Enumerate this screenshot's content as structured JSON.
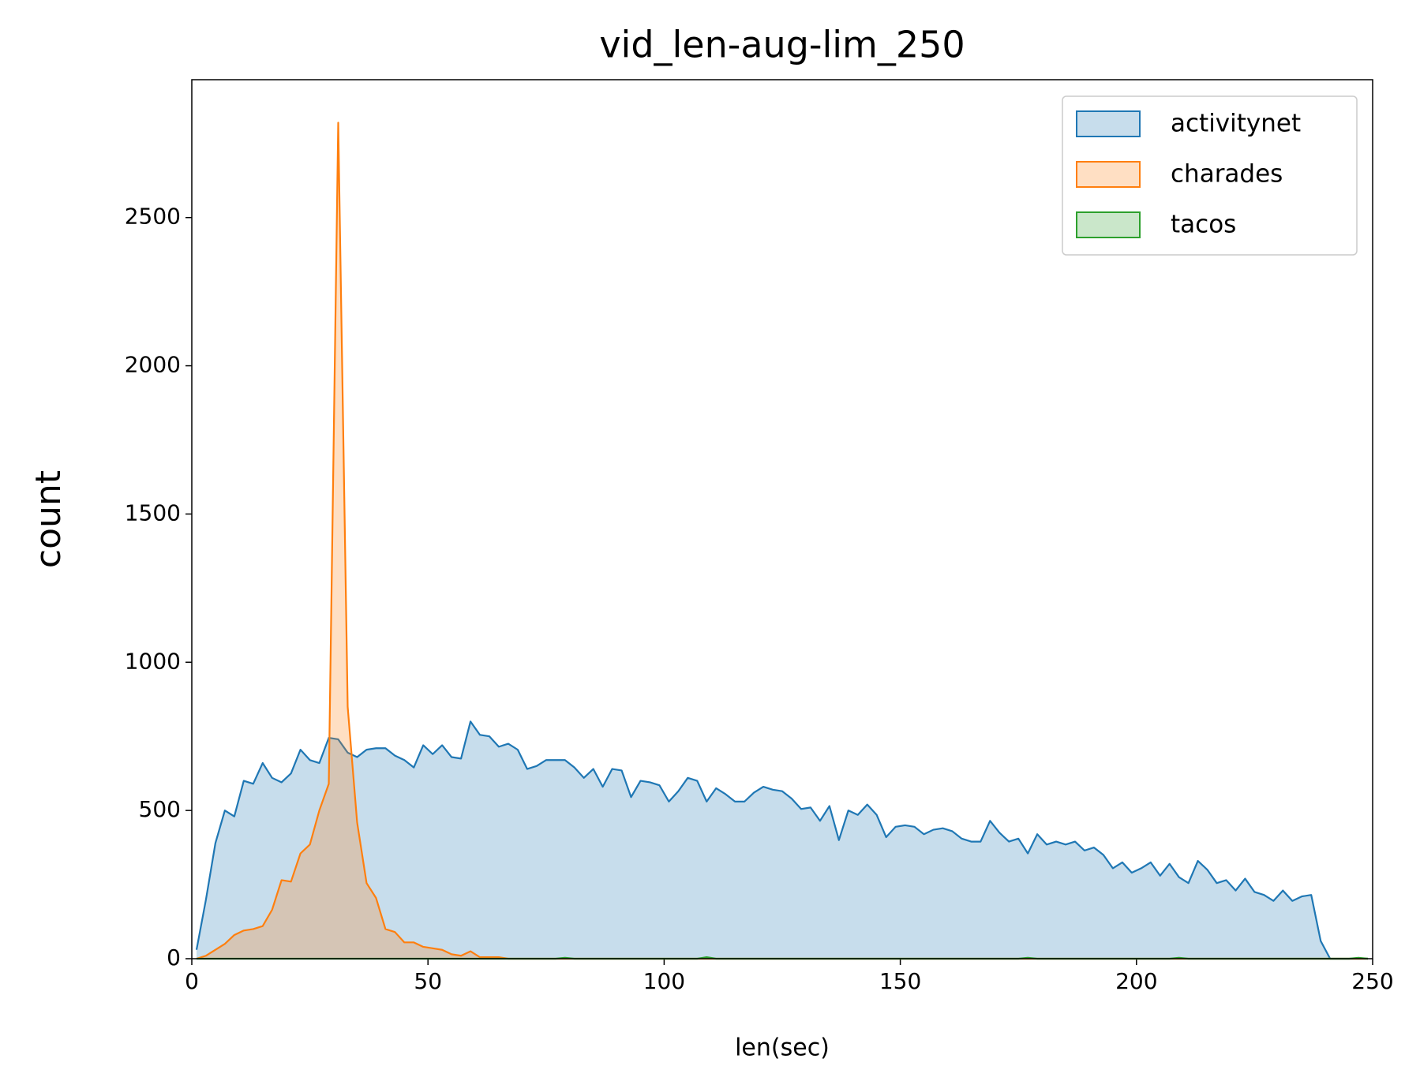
{
  "chart_data": {
    "type": "area",
    "title": "vid_len-aug-lim_250",
    "xlabel": "len(sec)",
    "ylabel": "count",
    "x": [
      1,
      3,
      5,
      7,
      9,
      11,
      13,
      15,
      17,
      19,
      21,
      23,
      25,
      27,
      29,
      31,
      33,
      35,
      37,
      39,
      41,
      43,
      45,
      47,
      49,
      51,
      53,
      55,
      57,
      59,
      61,
      63,
      65,
      67,
      69,
      71,
      73,
      75,
      77,
      79,
      81,
      83,
      85,
      87,
      89,
      91,
      93,
      95,
      97,
      99,
      101,
      103,
      105,
      107,
      109,
      111,
      113,
      115,
      117,
      119,
      121,
      123,
      125,
      127,
      129,
      131,
      133,
      135,
      137,
      139,
      141,
      143,
      145,
      147,
      149,
      151,
      153,
      155,
      157,
      159,
      161,
      163,
      165,
      167,
      169,
      171,
      173,
      175,
      177,
      179,
      181,
      183,
      185,
      187,
      189,
      191,
      193,
      195,
      197,
      199,
      201,
      203,
      205,
      207,
      209,
      211,
      213,
      215,
      217,
      219,
      221,
      223,
      225,
      227,
      229,
      231,
      233,
      235,
      237,
      239,
      241,
      243,
      245,
      247,
      249
    ],
    "series": [
      {
        "name": "activitynet",
        "color": "#1f77b4",
        "values": [
          30,
          200,
          390,
          500,
          480,
          600,
          590,
          660,
          610,
          595,
          625,
          705,
          670,
          660,
          745,
          740,
          695,
          680,
          705,
          710,
          710,
          685,
          670,
          645,
          720,
          690,
          720,
          680,
          675,
          800,
          755,
          750,
          715,
          725,
          705,
          640,
          650,
          670,
          670,
          670,
          645,
          610,
          640,
          580,
          640,
          635,
          545,
          600,
          595,
          585,
          530,
          565,
          610,
          600,
          530,
          575,
          555,
          530,
          530,
          560,
          580,
          570,
          565,
          540,
          505,
          510,
          465,
          515,
          400,
          500,
          485,
          520,
          485,
          410,
          445,
          450,
          445,
          420,
          435,
          440,
          430,
          405,
          395,
          395,
          465,
          425,
          395,
          405,
          355,
          420,
          385,
          395,
          385,
          395,
          365,
          375,
          350,
          305,
          325,
          290,
          305,
          325,
          280,
          320,
          275,
          255,
          330,
          300,
          255,
          265,
          230,
          270,
          225,
          215,
          195,
          230,
          195,
          210,
          215,
          60,
          0,
          0,
          0,
          0,
          0
        ]
      },
      {
        "name": "charades",
        "color": "#ff7f0e",
        "values": [
          0,
          10,
          30,
          50,
          80,
          95,
          100,
          110,
          165,
          265,
          260,
          355,
          385,
          500,
          590,
          2820,
          850,
          460,
          255,
          205,
          100,
          90,
          55,
          55,
          40,
          35,
          30,
          15,
          10,
          25,
          5,
          5,
          5,
          0,
          0,
          0,
          0,
          0,
          0,
          0,
          0,
          0,
          0,
          0,
          0,
          0,
          0,
          0,
          0,
          0,
          0,
          0,
          0,
          0,
          0,
          0,
          0,
          0,
          0,
          0,
          0,
          0,
          0,
          0,
          0,
          0,
          0,
          0,
          0,
          0,
          0,
          0,
          0,
          0,
          0,
          0,
          0,
          0,
          0,
          0,
          0,
          0,
          0,
          0,
          0,
          0,
          0,
          0,
          0,
          0,
          0,
          0,
          0,
          0,
          0,
          0,
          0,
          0,
          0,
          0,
          0,
          0,
          0,
          0,
          0,
          0,
          0,
          0,
          0,
          0,
          0,
          0,
          0,
          0,
          0,
          0,
          0,
          0,
          0,
          0,
          0,
          0,
          0,
          0,
          0
        ]
      },
      {
        "name": "tacos",
        "color": "#2ca02c",
        "values": [
          0,
          0,
          0,
          0,
          0,
          0,
          0,
          0,
          0,
          0,
          0,
          0,
          0,
          0,
          0,
          0,
          0,
          0,
          0,
          0,
          0,
          0,
          0,
          0,
          0,
          0,
          0,
          0,
          0,
          0,
          0,
          0,
          0,
          0,
          0,
          0,
          0,
          0,
          0,
          3,
          0,
          0,
          0,
          0,
          0,
          0,
          0,
          0,
          0,
          0,
          0,
          0,
          0,
          0,
          5,
          0,
          0,
          0,
          0,
          0,
          0,
          0,
          0,
          0,
          0,
          0,
          0,
          0,
          0,
          0,
          0,
          0,
          0,
          0,
          0,
          0,
          0,
          0,
          0,
          0,
          0,
          0,
          0,
          0,
          0,
          0,
          0,
          0,
          3,
          0,
          0,
          0,
          0,
          0,
          0,
          0,
          0,
          0,
          0,
          0,
          0,
          0,
          0,
          0,
          3,
          0,
          0,
          0,
          0,
          0,
          0,
          0,
          0,
          0,
          0,
          0,
          0,
          0,
          0,
          0,
          0,
          0,
          0,
          3,
          0
        ]
      }
    ],
    "xlim": [
      0,
      250
    ],
    "xticks": [
      0,
      50,
      100,
      150,
      200,
      250
    ],
    "ylim": [
      0,
      2965
    ],
    "yticks": [
      0,
      500,
      1000,
      1500,
      2000,
      2500
    ],
    "fill_opacity": 0.25,
    "legend": "upper right"
  }
}
